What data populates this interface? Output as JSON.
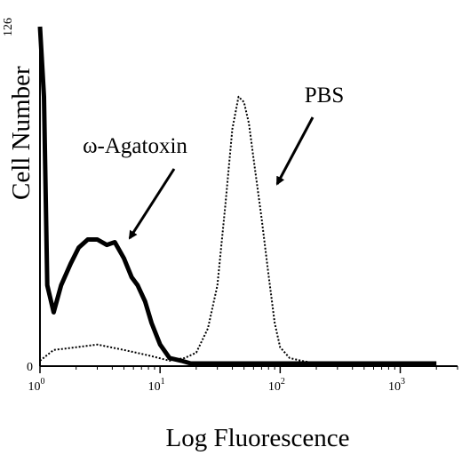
{
  "chart_data": {
    "type": "line",
    "xlabel": "Log Fluorescence",
    "ylabel": "Cell Number",
    "x_scale": "log",
    "xlim": [
      1,
      3000
    ],
    "ylim": [
      0,
      126
    ],
    "y_ticks": [
      "0",
      "126"
    ],
    "x_ticks": [
      {
        "value": 1,
        "base": "10",
        "exp": "0"
      },
      {
        "value": 10,
        "base": "10",
        "exp": "1"
      },
      {
        "value": 100,
        "base": "10",
        "exp": "2"
      },
      {
        "value": 1000,
        "base": "10",
        "exp": "3"
      }
    ],
    "grid": false,
    "series": [
      {
        "name": "ω-Agatoxin",
        "style": "solid-thick",
        "color": "#000000",
        "x": [
          1,
          1.08,
          1.15,
          1.3,
          1.5,
          1.8,
          2.1,
          2.5,
          3,
          3.6,
          4.2,
          5,
          5.8,
          6.5,
          7.5,
          8.5,
          10,
          12,
          15,
          18,
          22,
          30,
          50,
          80,
          150,
          300,
          600,
          1000,
          2000
        ],
        "y": [
          126,
          100,
          30,
          20,
          30,
          38,
          44,
          47,
          47,
          45,
          46,
          40,
          33,
          30,
          24,
          16,
          8,
          3,
          2,
          1,
          1,
          1,
          1,
          1,
          1,
          1,
          1,
          1,
          1
        ]
      },
      {
        "name": "PBS",
        "style": "dotted",
        "color": "#000000",
        "x": [
          1,
          1.3,
          2,
          3,
          5,
          8,
          12,
          16,
          20,
          25,
          30,
          35,
          40,
          45,
          50,
          55,
          60,
          70,
          80,
          90,
          100,
          120,
          150,
          200,
          400,
          1000,
          2000
        ],
        "y": [
          2,
          6,
          7,
          8,
          6,
          4,
          2,
          3,
          5,
          14,
          30,
          60,
          88,
          100,
          98,
          90,
          77,
          55,
          34,
          16,
          7,
          3,
          2,
          1,
          1,
          0,
          0
        ]
      }
    ],
    "annotations": [
      {
        "text": "PBS",
        "series": "PBS"
      },
      {
        "text": "ω-Agatoxin",
        "series": "ω-Agatoxin"
      }
    ]
  }
}
